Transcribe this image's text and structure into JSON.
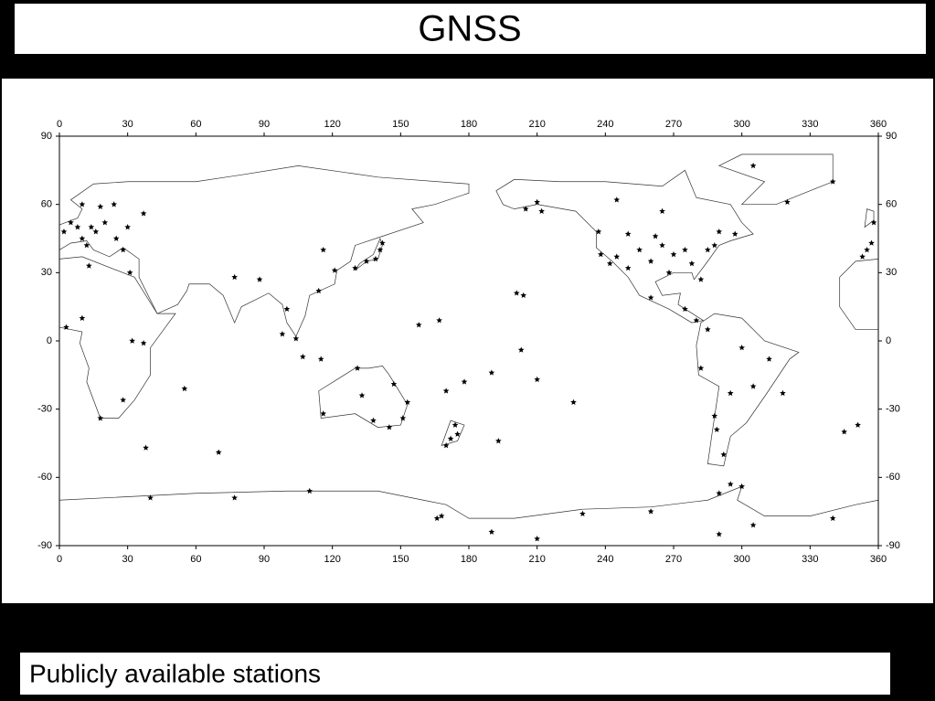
{
  "chart_data": {
    "type": "scatter",
    "title": "GNSS",
    "x": [
      2,
      5,
      8,
      10,
      12,
      14,
      16,
      20,
      24,
      10,
      18,
      25,
      28,
      30,
      37,
      355,
      357,
      358,
      353,
      77,
      88,
      100,
      104,
      116,
      121,
      114,
      130,
      135,
      139,
      141,
      142,
      107,
      115,
      98,
      116,
      131,
      138,
      145,
      151,
      153,
      147,
      133,
      174,
      175,
      172,
      170,
      158,
      167,
      178,
      190,
      201,
      204,
      210,
      226,
      193,
      203,
      170,
      237,
      238,
      242,
      245,
      250,
      255,
      260,
      265,
      270,
      275,
      278,
      282,
      285,
      288,
      268,
      262,
      250,
      210,
      212,
      205,
      245,
      265,
      290,
      297,
      260,
      275,
      280,
      282,
      288,
      289,
      292,
      295,
      305,
      312,
      318,
      300,
      285,
      18,
      28,
      37,
      32,
      3,
      10,
      13,
      31,
      166,
      168,
      190,
      230,
      260,
      295,
      300,
      305,
      290,
      210,
      290,
      340,
      77,
      110,
      40,
      320,
      305,
      340,
      55,
      70,
      38,
      345,
      351
    ],
    "y": [
      48,
      52,
      50,
      45,
      42,
      50,
      48,
      52,
      60,
      60,
      59,
      45,
      40,
      50,
      56,
      40,
      43,
      52,
      37,
      28,
      27,
      14,
      1,
      40,
      31,
      22,
      32,
      35,
      36,
      40,
      43,
      -7,
      -8,
      3,
      -32,
      -12,
      -35,
      -38,
      -34,
      -27,
      -19,
      -24,
      -37,
      -41,
      -43,
      -46,
      7,
      9,
      -18,
      -14,
      21,
      20,
      -17,
      -27,
      -44,
      -4,
      -22,
      48,
      38,
      34,
      37,
      32,
      40,
      35,
      42,
      38,
      40,
      34,
      27,
      40,
      42,
      30,
      46,
      47,
      61,
      57,
      58,
      62,
      57,
      48,
      47,
      19,
      14,
      9,
      -12,
      -33,
      -39,
      -50,
      -23,
      -20,
      -8,
      -23,
      -3,
      5,
      -34,
      -26,
      -1,
      0,
      6,
      10,
      33,
      30,
      -78,
      -77,
      -84,
      -76,
      -75,
      -63,
      -64,
      -81,
      -85,
      -87,
      -67,
      -78,
      -69,
      -66,
      -69,
      61,
      77,
      70,
      -21,
      -49,
      -47,
      -40,
      -37
    ],
    "color": "#000000",
    "xlim": [
      0,
      360
    ],
    "ylim": [
      -90,
      90
    ],
    "xticks": [
      0,
      30,
      60,
      90,
      120,
      150,
      180,
      210,
      240,
      270,
      300,
      330,
      360
    ],
    "yticks": [
      -90,
      -60,
      -30,
      0,
      30,
      60,
      90
    ]
  },
  "caption": "Publicly available stations"
}
